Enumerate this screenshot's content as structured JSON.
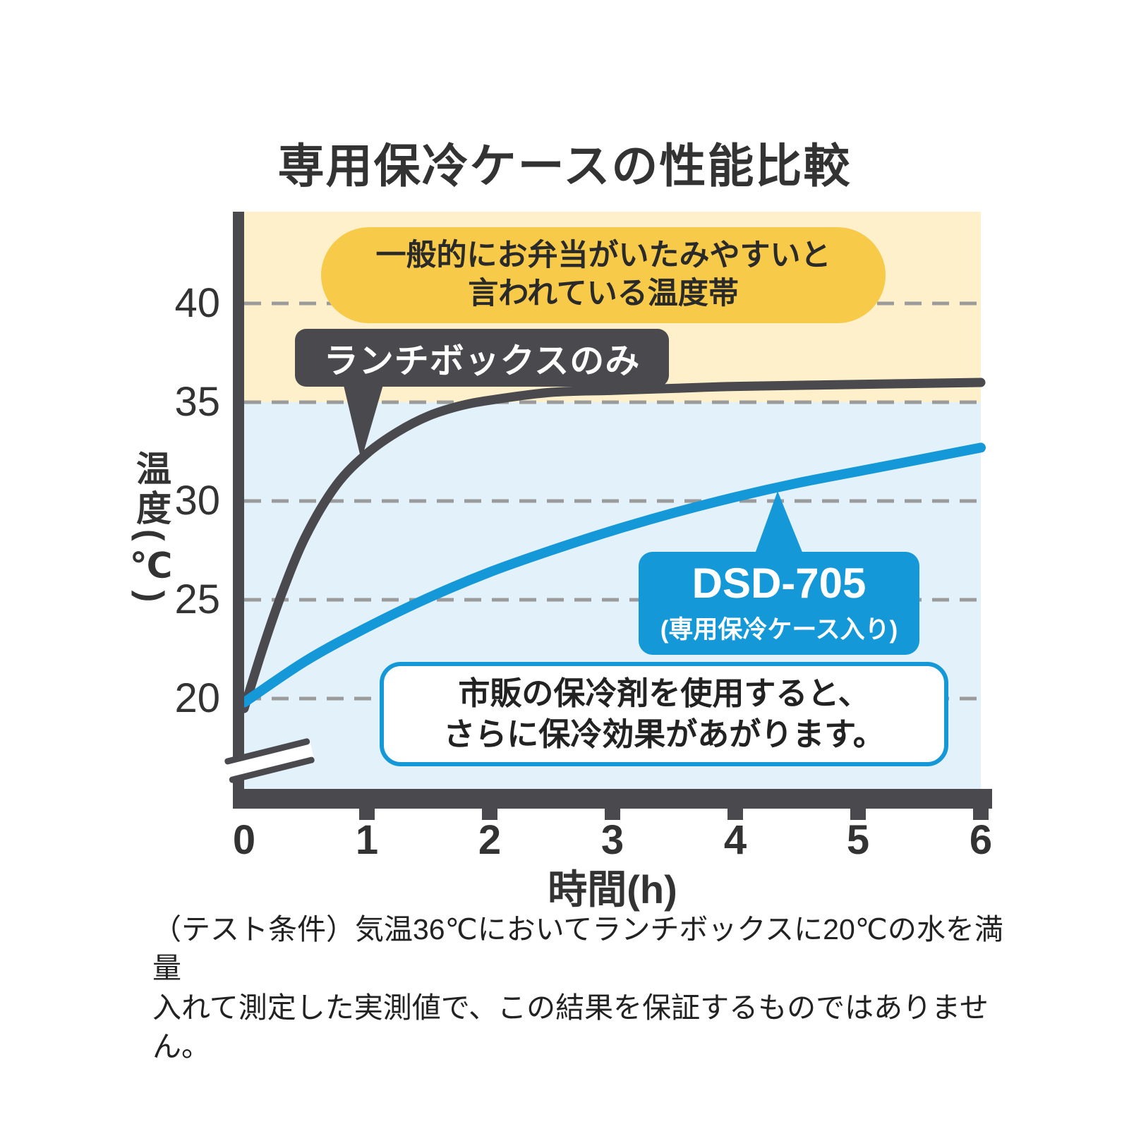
{
  "title": "専用保冷ケースの性能比較",
  "chart_data": {
    "type": "line",
    "xlabel": "時間(h)",
    "ylabel": "温度(℃)",
    "x_ticks": [
      0,
      1,
      2,
      3,
      4,
      5,
      6
    ],
    "y_ticks": [
      20,
      25,
      30,
      35,
      40
    ],
    "x_range": [
      0,
      6
    ],
    "y_range_shown": [
      20,
      44
    ],
    "grid": "dashed-horizontal",
    "plot_background": "#e2f1fa",
    "danger_zone": {
      "from": 35,
      "band_color": "#fdf0cb",
      "callout_color": "#f7ca49",
      "label_line1": "一般的にお弁当がいたみやすいと",
      "label_line2": "言われている温度帯"
    },
    "series": [
      {
        "name": "ランチボックスのみ",
        "color": "#4a4a4e",
        "x": [
          0,
          0.15,
          0.3,
          0.5,
          0.75,
          1,
          1.25,
          1.5,
          1.75,
          2,
          2.5,
          3,
          3.5,
          4,
          5,
          6
        ],
        "values": [
          19.5,
          22.5,
          25.2,
          28.2,
          30.8,
          32.4,
          33.5,
          34.3,
          34.8,
          35.1,
          35.5,
          35.6,
          35.7,
          35.8,
          35.9,
          36
        ]
      },
      {
        "name": "DSD-705",
        "name_sub": "(専用保冷ケース入り)",
        "color": "#1498d8",
        "x": [
          0,
          0.5,
          1,
          1.5,
          2,
          2.5,
          3,
          3.5,
          4,
          4.5,
          5,
          5.5,
          6
        ],
        "values": [
          19.8,
          21.9,
          23.6,
          25.1,
          26.4,
          27.5,
          28.5,
          29.4,
          30.2,
          30.9,
          31.5,
          32.1,
          32.7
        ]
      }
    ],
    "note_box": {
      "line1": "市販の保冷剤を使用すると、",
      "line2": "さらに保冷効果があがります。"
    }
  },
  "footer": {
    "line1": "（テスト条件）気温36℃においてランチボックスに20℃の水を満量",
    "line2": "入れて測定した実測値で、この結果を保証するものではありません。"
  },
  "colors": {
    "axis": "#4a4a4e",
    "grid": "#9b9b9b",
    "text": "#333333"
  }
}
